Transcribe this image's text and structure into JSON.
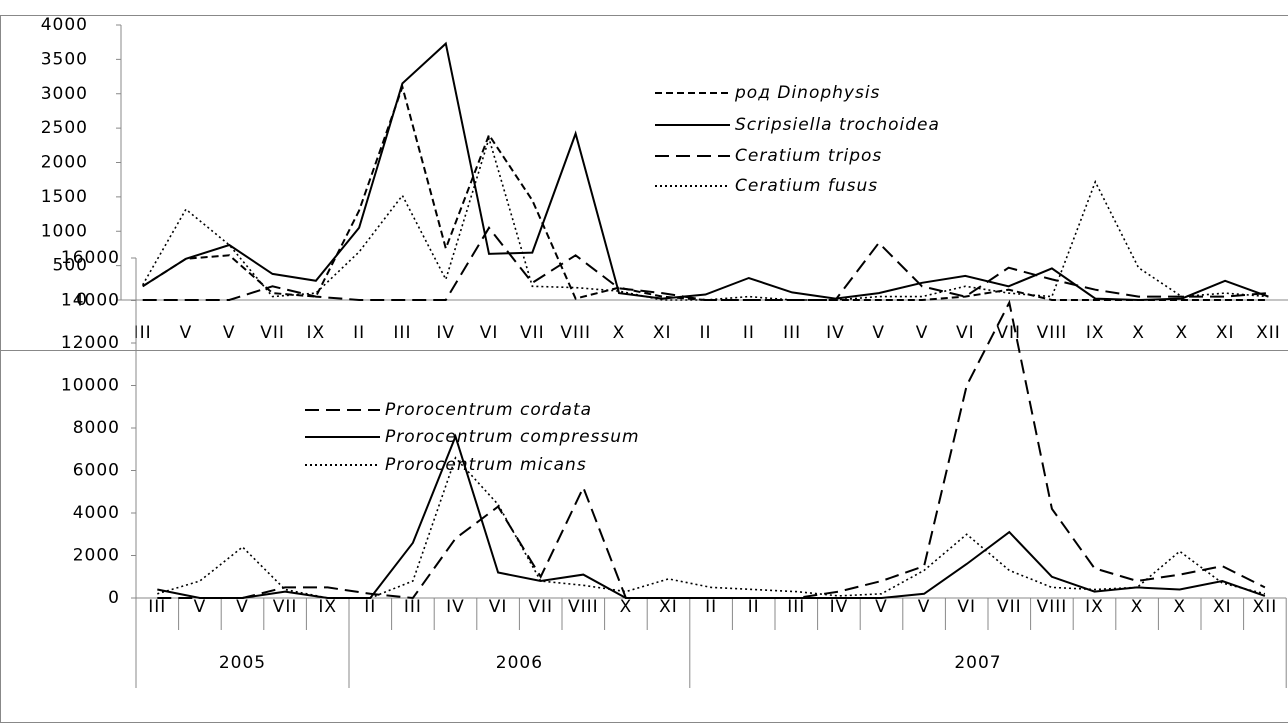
{
  "chart_data": [
    {
      "type": "line",
      "categories": [
        "III",
        "V",
        "V",
        "VII",
        "IX",
        "II",
        "III",
        "IV",
        "VI",
        "VII",
        "VIII",
        "X",
        "XI",
        "II",
        "II",
        "III",
        "IV",
        "V",
        "V",
        "VI",
        "VII",
        "VIII",
        "IX",
        "X",
        "X",
        "XI",
        "XII"
      ],
      "series": [
        {
          "name": "род  Dinophysis",
          "color": "#000000",
          "dash": "short",
          "values": [
            200,
            600,
            650,
            100,
            50,
            1300,
            3100,
            750,
            2400,
            1450,
            20,
            180,
            50,
            0,
            0,
            0,
            0,
            0,
            0,
            50,
            150,
            0,
            0,
            0,
            0,
            0,
            0
          ]
        },
        {
          "name": "Scripsiella trochoidea",
          "color": "#000000",
          "dash": "solid",
          "values": [
            200,
            600,
            800,
            380,
            280,
            1050,
            3150,
            3730,
            670,
            690,
            2420,
            100,
            20,
            80,
            320,
            110,
            20,
            100,
            250,
            350,
            200,
            460,
            20,
            0,
            20,
            280,
            50
          ]
        },
        {
          "name": "Ceratium  tripos",
          "color": "#000000",
          "dash": "long",
          "values": [
            0,
            0,
            0,
            200,
            50,
            0,
            0,
            0,
            1050,
            250,
            650,
            170,
            100,
            0,
            0,
            0,
            0,
            830,
            200,
            50,
            470,
            300,
            150,
            50,
            50,
            50,
            100
          ]
        },
        {
          "name": "Ceratium fusus",
          "color": "#000000",
          "dash": "dotted",
          "values": [
            220,
            1320,
            800,
            50,
            100,
            700,
            1520,
            300,
            2350,
            200,
            180,
            130,
            0,
            0,
            50,
            0,
            0,
            50,
            50,
            200,
            100,
            50,
            1720,
            470,
            50,
            100,
            50
          ]
        }
      ],
      "ylim": [
        0,
        4000
      ],
      "yticks": [
        0,
        500,
        1000,
        1500,
        2000,
        2500,
        3000,
        3500,
        4000
      ]
    },
    {
      "type": "line",
      "categories": [
        "III",
        "V",
        "V",
        "VII",
        "IX",
        "II",
        "III",
        "IV",
        "VI",
        "VII",
        "VIII",
        "X",
        "XI",
        "II",
        "II",
        "III",
        "IV",
        "V",
        "V",
        "VI",
        "VII",
        "VIII",
        "IX",
        "X",
        "X",
        "XI",
        "XII"
      ],
      "years": [
        "2005",
        "2006",
        "2007"
      ],
      "series": [
        {
          "name": "Prorocentrum cordata",
          "color": "#000000",
          "dash": "long",
          "values": [
            0,
            0,
            0,
            500,
            500,
            200,
            0,
            2800,
            4300,
            1000,
            5200,
            0,
            0,
            0,
            0,
            0,
            300,
            800,
            1500,
            10000,
            13900,
            4200,
            1400,
            800,
            1100,
            1500,
            500
          ]
        },
        {
          "name": "Prorocentrum compressum",
          "color": "#000000",
          "dash": "solid",
          "values": [
            400,
            0,
            0,
            300,
            0,
            0,
            2600,
            7600,
            1200,
            800,
            1100,
            0,
            0,
            0,
            0,
            0,
            0,
            0,
            200,
            1600,
            3100,
            1000,
            300,
            500,
            400,
            800,
            100
          ]
        },
        {
          "name": "Prorocentrum micans",
          "color": "#000000",
          "dash": "dotted",
          "values": [
            200,
            800,
            2400,
            400,
            0,
            0,
            800,
            6600,
            4400,
            800,
            600,
            300,
            900,
            500,
            400,
            300,
            100,
            200,
            1300,
            3000,
            1300,
            500,
            400,
            500,
            2200,
            700,
            200
          ]
        }
      ],
      "ylim": [
        0,
        16000
      ],
      "yticks": [
        0,
        2000,
        4000,
        6000,
        8000,
        10000,
        12000,
        14000,
        16000
      ]
    }
  ]
}
